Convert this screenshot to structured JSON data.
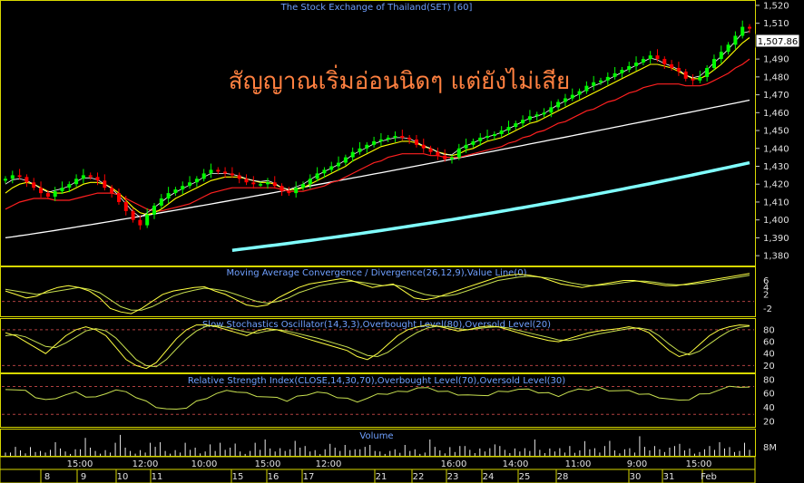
{
  "chart_data": {
    "type": "candlestick",
    "title": "The Stock Exchange of Thailand(SET) [60]",
    "annotation": "สัญญาณเริ่มอ่อนนิดๆ แต่ยังไม่เสีย",
    "last_price_label": "1,507.86",
    "colors": {
      "background": "#000000",
      "up_candle": "#00ff00",
      "down_candle": "#ff0000",
      "ma_fast": "#ffff00",
      "ma_slow": "#ff2020",
      "ma_long": "#ffffff",
      "ma_trend": "#80ffff",
      "panel_border": "#ffff00",
      "title": "#6fa0ff",
      "annotation": "#ff8040",
      "grid_dash": "#b04040"
    },
    "price_panel": {
      "ylim": [
        1375,
        1522
      ],
      "y_ticks": [
        "1,520",
        "1,510",
        "1,500",
        "1,490",
        "1,480",
        "1,470",
        "1,460",
        "1,450",
        "1,440",
        "1,430",
        "1,420",
        "1,410",
        "1,400",
        "1,390",
        "1,380"
      ],
      "close": [
        1423,
        1425,
        1424,
        1421,
        1418,
        1415,
        1413,
        1416,
        1418,
        1420,
        1423,
        1425,
        1424,
        1422,
        1418,
        1415,
        1410,
        1405,
        1400,
        1397,
        1403,
        1408,
        1412,
        1415,
        1417,
        1419,
        1421,
        1423,
        1426,
        1428,
        1427,
        1426,
        1425,
        1423,
        1421,
        1420,
        1420,
        1421,
        1419,
        1416,
        1415,
        1418,
        1420,
        1423,
        1426,
        1428,
        1430,
        1432,
        1435,
        1438,
        1440,
        1442,
        1444,
        1445,
        1446,
        1447,
        1446,
        1445,
        1442,
        1440,
        1438,
        1436,
        1434,
        1435,
        1440,
        1442,
        1444,
        1446,
        1447,
        1448,
        1450,
        1452,
        1454,
        1456,
        1458,
        1459,
        1460,
        1463,
        1466,
        1468,
        1470,
        1472,
        1475,
        1477,
        1478,
        1480,
        1482,
        1484,
        1486,
        1488,
        1490,
        1492,
        1490,
        1487,
        1485,
        1483,
        1479,
        1478,
        1480,
        1485,
        1490,
        1494,
        1498,
        1503,
        1508,
        1507
      ],
      "ma_fast_values": [
        1415,
        1418,
        1420,
        1421,
        1420,
        1418,
        1416,
        1415,
        1415,
        1416,
        1418,
        1420,
        1421,
        1421,
        1420,
        1418,
        1415,
        1411,
        1407,
        1404,
        1403,
        1404,
        1406,
        1409,
        1412,
        1414,
        1416,
        1418,
        1420,
        1422,
        1423,
        1424,
        1424,
        1424,
        1423,
        1422,
        1421,
        1421,
        1420,
        1418,
        1417,
        1417,
        1418,
        1420,
        1422,
        1424,
        1426,
        1428,
        1430,
        1433,
        1435,
        1437,
        1439,
        1441,
        1442,
        1443,
        1444,
        1444,
        1443,
        1441,
        1440,
        1438,
        1437,
        1436,
        1437,
        1439,
        1440,
        1442,
        1444,
        1445,
        1446,
        1448,
        1450,
        1452,
        1454,
        1455,
        1457,
        1459,
        1461,
        1463,
        1465,
        1467,
        1469,
        1471,
        1473,
        1475,
        1477,
        1479,
        1481,
        1483,
        1485,
        1487,
        1487,
        1486,
        1485,
        1483,
        1481,
        1479,
        1479,
        1481,
        1484,
        1487,
        1491,
        1495,
        1499,
        1502
      ],
      "ma_slow_values": [
        1406,
        1408,
        1410,
        1411,
        1412,
        1412,
        1412,
        1411,
        1411,
        1411,
        1412,
        1413,
        1414,
        1415,
        1415,
        1415,
        1414,
        1412,
        1410,
        1408,
        1406,
        1405,
        1405,
        1406,
        1407,
        1408,
        1409,
        1411,
        1413,
        1415,
        1416,
        1417,
        1418,
        1418,
        1418,
        1418,
        1418,
        1418,
        1418,
        1417,
        1416,
        1416,
        1416,
        1417,
        1418,
        1419,
        1421,
        1422,
        1424,
        1426,
        1428,
        1430,
        1432,
        1433,
        1435,
        1436,
        1437,
        1437,
        1437,
        1437,
        1436,
        1436,
        1435,
        1435,
        1435,
        1436,
        1437,
        1438,
        1439,
        1440,
        1441,
        1443,
        1444,
        1446,
        1447,
        1449,
        1450,
        1452,
        1454,
        1455,
        1457,
        1459,
        1461,
        1462,
        1464,
        1466,
        1467,
        1469,
        1471,
        1472,
        1474,
        1475,
        1476,
        1476,
        1476,
        1476,
        1475,
        1475,
        1475,
        1476,
        1478,
        1480,
        1482,
        1485,
        1487,
        1490
      ],
      "ma_long_start": 1390,
      "ma_long_end": 1467,
      "ma_trend_start": 1383,
      "ma_trend_end": 1432
    },
    "macd_panel": {
      "title": "Moving Average Convergence / Divergence(26,12,9),Value Line(0)",
      "ylim": [
        -4,
        9
      ],
      "y_ticks": [
        "6",
        "4",
        "2",
        "-2"
      ],
      "macd": [
        3,
        2,
        1,
        1.5,
        3,
        4,
        4.5,
        4,
        3,
        1,
        -2,
        -3,
        -3.5,
        -2,
        0,
        2,
        3,
        3.5,
        4,
        4.2,
        3,
        2,
        0.5,
        -1,
        -1.5,
        -1,
        1,
        2.5,
        4,
        5,
        5.5,
        6,
        6.5,
        6,
        5,
        4,
        4.5,
        5,
        3,
        1,
        0.5,
        1,
        2,
        3,
        4,
        5,
        6,
        7,
        7.5,
        7.8,
        7.5,
        7,
        6,
        5,
        4.5,
        4,
        4.5,
        5,
        5.5,
        6,
        6,
        5.5,
        5,
        4.5,
        4.5,
        5,
        5.5,
        6,
        6.5,
        7,
        7.5,
        8
      ],
      "signal": [
        3.5,
        3,
        2.5,
        2,
        2.5,
        3,
        3.5,
        4,
        3.5,
        2.5,
        0.5,
        -1.5,
        -2.5,
        -2.5,
        -1.5,
        0,
        1.5,
        2.5,
        3.2,
        3.8,
        3.5,
        3,
        2,
        1,
        0,
        -0.5,
        0,
        1,
        2.5,
        3.5,
        4.5,
        5,
        5.5,
        5.8,
        5.5,
        5,
        4.5,
        4.8,
        4.2,
        3,
        2,
        1.5,
        1.5,
        2,
        3,
        4,
        5,
        6,
        6.5,
        7,
        7.2,
        7,
        6.6,
        6,
        5.3,
        4.8,
        4.5,
        4.7,
        5,
        5.4,
        5.8,
        5.8,
        5.5,
        5,
        4.8,
        4.8,
        5.1,
        5.5,
        6,
        6.5,
        7,
        7.5
      ]
    },
    "stoch_panel": {
      "title": "Slow Stochastics Oscillator(14,3,3),Overbought Level(80),Oversold Level(20)",
      "ylim": [
        10,
        95
      ],
      "y_ticks": [
        "80",
        "60",
        "40",
        "20"
      ],
      "overbought": 80,
      "oversold": 20,
      "k": [
        75,
        70,
        60,
        50,
        40,
        55,
        70,
        80,
        85,
        80,
        70,
        50,
        30,
        20,
        15,
        25,
        45,
        65,
        80,
        88,
        88,
        85,
        80,
        75,
        70,
        78,
        82,
        80,
        75,
        70,
        65,
        60,
        55,
        50,
        45,
        35,
        30,
        40,
        55,
        70,
        80,
        85,
        88,
        86,
        82,
        78,
        80,
        84,
        86,
        85,
        80,
        75,
        70,
        66,
        62,
        60,
        65,
        70,
        75,
        78,
        80,
        82,
        85,
        82,
        75,
        60,
        45,
        35,
        40,
        55,
        70,
        80,
        85,
        88,
        87
      ],
      "d": [
        70,
        72,
        68,
        60,
        52,
        50,
        58,
        68,
        78,
        82,
        78,
        66,
        48,
        30,
        20,
        18,
        30,
        48,
        65,
        78,
        86,
        87,
        84,
        80,
        76,
        74,
        78,
        80,
        78,
        74,
        70,
        66,
        61,
        56,
        51,
        44,
        37,
        35,
        42,
        54,
        66,
        76,
        83,
        86,
        85,
        82,
        80,
        82,
        84,
        85,
        83,
        79,
        75,
        71,
        67,
        63,
        62,
        65,
        69,
        73,
        76,
        79,
        82,
        83,
        80,
        70,
        56,
        44,
        38,
        44,
        56,
        68,
        78,
        84,
        86
      ]
    },
    "rsi_panel": {
      "title": "Relative Strength Index(CLOSE,14,30,70),Overbought Level(70),Oversold Level(30)",
      "ylim": [
        12,
        85
      ],
      "y_ticks": [
        "80",
        "60",
        "40",
        "20"
      ],
      "overbought": 70,
      "oversold": 30,
      "rsi": [
        68,
        65,
        62,
        55,
        50,
        55,
        58,
        60,
        56,
        54,
        62,
        65,
        60,
        55,
        48,
        42,
        38,
        35,
        40,
        48,
        55,
        60,
        62,
        63,
        60,
        58,
        55,
        52,
        50,
        55,
        60,
        62,
        58,
        55,
        52,
        50,
        53,
        57,
        60,
        62,
        65,
        68,
        66,
        64,
        62,
        60,
        58,
        55,
        58,
        62,
        65,
        66,
        64,
        62,
        60,
        58,
        62,
        64,
        66,
        68,
        66,
        64,
        62,
        60,
        58,
        56,
        52,
        48,
        52,
        58,
        62,
        65,
        68,
        70,
        68
      ]
    },
    "volume_panel": {
      "title": "Volume",
      "y_ticks": [
        "8M"
      ],
      "bars": [
        2,
        1,
        3,
        2,
        1,
        4,
        2,
        3,
        1,
        2,
        5,
        3,
        2,
        1,
        4,
        2,
        6,
        3,
        2,
        1,
        3,
        2,
        4,
        7,
        3,
        2,
        1,
        3,
        2,
        4,
        3,
        5,
        2,
        1,
        3,
        2,
        4,
        2,
        3,
        1,
        2,
        6,
        3,
        4,
        2,
        3,
        5,
        2,
        1,
        3,
        4,
        2,
        6,
        3,
        2,
        4,
        3,
        2,
        5,
        3,
        4,
        2,
        3,
        1,
        2,
        4,
        3,
        2,
        5,
        3,
        4,
        2,
        3,
        4,
        2
      ]
    },
    "x_time_ticks": [
      "15:00",
      "12:00",
      "10:00",
      "15:00",
      "12:00",
      "16:00",
      "14:00",
      "11:00",
      "9:00",
      "15:00"
    ],
    "x_date_ticks": [
      "8",
      "9",
      "10",
      "11",
      "15",
      "16",
      "17",
      "21",
      "22",
      "23",
      "24",
      "25",
      "28",
      "30",
      "31",
      "Feb"
    ]
  }
}
